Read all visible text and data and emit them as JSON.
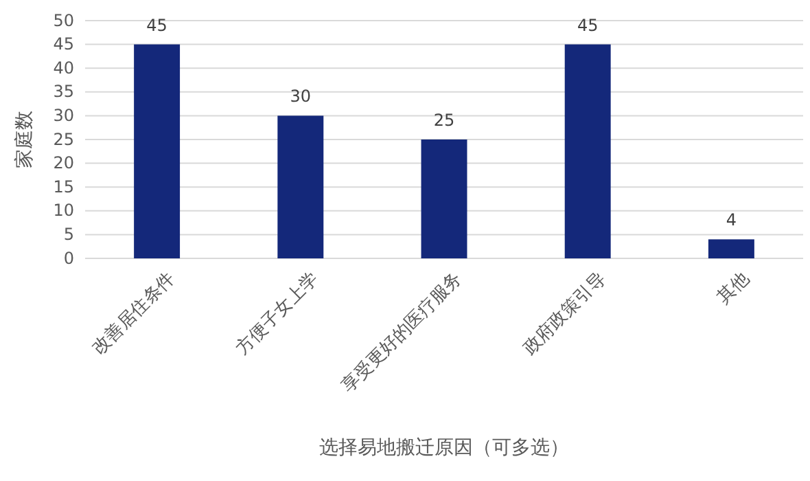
{
  "chart_data": {
    "type": "bar",
    "xlabel": "选择易地搬迁原因（可多选）",
    "ylabel": "家庭数",
    "categories": [
      "改善居住条件",
      "方便子女上学",
      "享受更好的医疗服务",
      "政府政策引导",
      "其他"
    ],
    "values": [
      45,
      30,
      25,
      45,
      4
    ],
    "color": "#14287a",
    "ylim": [
      0,
      50
    ],
    "yticks": [
      0,
      5,
      10,
      15,
      20,
      25,
      30,
      35,
      40,
      45,
      50
    ],
    "grid": "y",
    "data_labels": true
  }
}
